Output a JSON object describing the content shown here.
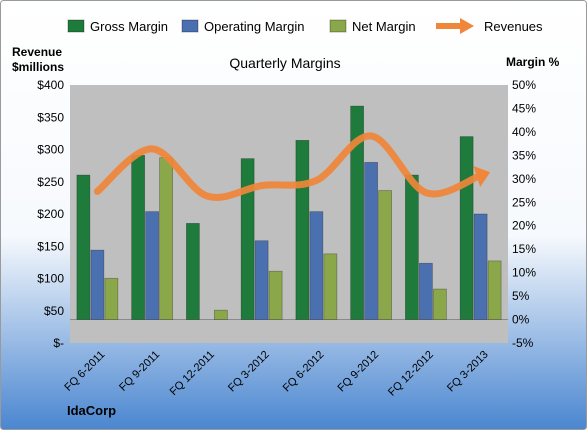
{
  "colors": {
    "background_top": "#ffffff",
    "background_bottom": "#4a86d0",
    "plot_area": "#bfbfbf",
    "gross_margin": "#1e7b3c",
    "operating_margin": "#4a70b0",
    "net_margin": "#8aa84a",
    "revenues": "#f0863a",
    "border": "#9a9a9a"
  },
  "footer": {
    "company": "IdaCorp"
  },
  "chart_data": {
    "type": "bar",
    "title": "Quarterly Margins",
    "categories": [
      "FQ 6-2011",
      "FQ 9-2011",
      "FQ 12-2011",
      "FQ 3-2012",
      "FQ 6-2012",
      "FQ 9-2012",
      "FQ 12-2012",
      "FQ 3-2013"
    ],
    "y_left": {
      "label_line1": "Revenue",
      "label_line2": "$millions",
      "range": [
        0,
        400
      ],
      "ticks": [
        0,
        50,
        100,
        150,
        200,
        250,
        300,
        350,
        400
      ],
      "tick_labels": [
        "$-",
        "$50",
        "$100",
        "$150",
        "$200",
        "$250",
        "$300",
        "$350",
        "$400"
      ]
    },
    "y_right": {
      "label": "Margin %",
      "range": [
        -5,
        50
      ],
      "ticks": [
        -5,
        0,
        5,
        10,
        15,
        20,
        25,
        30,
        35,
        40,
        45,
        50
      ],
      "tick_labels": [
        "-5%",
        "0%",
        "5%",
        "10%",
        "15%",
        "20%",
        "25%",
        "30%",
        "35%",
        "40%",
        "45%",
        "50%"
      ]
    },
    "legend_position": "top",
    "series": [
      {
        "name": "Gross Margin",
        "axis": "right",
        "kind": "bar",
        "color_key": "gross_margin",
        "values": [
          30.8,
          35.0,
          20.5,
          34.3,
          38.2,
          45.5,
          30.8,
          39.0
        ]
      },
      {
        "name": "Operating Margin",
        "axis": "right",
        "kind": "bar",
        "color_key": "operating_margin",
        "values": [
          14.8,
          23.0,
          0.0,
          16.8,
          23.0,
          33.5,
          12.0,
          22.5
        ]
      },
      {
        "name": "Net Margin",
        "axis": "right",
        "kind": "bar",
        "color_key": "net_margin",
        "values": [
          8.8,
          34.5,
          2.0,
          10.3,
          14.0,
          27.5,
          6.5,
          12.5
        ]
      },
      {
        "name": "Revenues",
        "axis": "left",
        "kind": "line",
        "color_key": "revenues",
        "values": [
          235,
          301,
          228,
          244,
          252,
          321,
          233,
          260
        ]
      }
    ]
  }
}
